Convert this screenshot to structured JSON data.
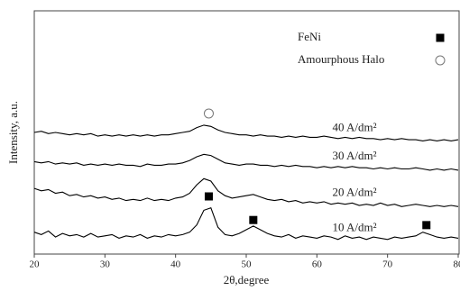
{
  "chart_data": {
    "type": "line",
    "xlabel": "2θ,degree",
    "ylabel": "Intensity, a.u.",
    "xlim": [
      20,
      80
    ],
    "xticks": [
      20,
      30,
      40,
      50,
      60,
      70,
      80
    ],
    "ylim": [
      0,
      100
    ],
    "x": [
      20,
      21,
      22,
      23,
      24,
      25,
      26,
      27,
      28,
      29,
      30,
      31,
      32,
      33,
      34,
      35,
      36,
      37,
      38,
      39,
      40,
      41,
      42,
      43,
      44,
      45,
      46,
      47,
      48,
      49,
      50,
      51,
      52,
      53,
      54,
      55,
      56,
      57,
      58,
      59,
      60,
      61,
      62,
      63,
      64,
      65,
      66,
      67,
      68,
      69,
      70,
      71,
      72,
      73,
      74,
      75,
      76,
      77,
      78,
      79,
      80
    ],
    "series": [
      {
        "name": "40 A/dm²",
        "color": "#000000",
        "values": [
          50,
          50.5,
          49.5,
          50,
          49.5,
          49,
          49.5,
          49,
          49.5,
          48.5,
          49,
          48.5,
          49,
          48.5,
          49,
          48.5,
          49,
          48.5,
          49,
          49,
          49.5,
          50,
          50.5,
          52,
          53,
          52.5,
          51,
          50,
          49.5,
          49,
          49,
          48.5,
          49,
          48.5,
          48.5,
          48,
          48.5,
          48,
          48.5,
          48,
          48,
          48.5,
          48,
          47.5,
          48,
          47.5,
          48,
          47.5,
          47.5,
          47,
          47.5,
          47,
          47.5,
          47,
          47,
          46.5,
          47,
          46.5,
          47,
          46.5,
          47
        ]
      },
      {
        "name": "30 A/dm²",
        "color": "#000000",
        "values": [
          38,
          37.5,
          38,
          37,
          37.5,
          37,
          37.5,
          36.5,
          37,
          36.5,
          37,
          36.5,
          37,
          36.5,
          36.5,
          36,
          37,
          36.5,
          36.5,
          37,
          37,
          37.5,
          38.5,
          40,
          41,
          40.5,
          39,
          37.5,
          37,
          36.5,
          37,
          37,
          36.5,
          36.5,
          36,
          36.5,
          36,
          36.5,
          36,
          36,
          35.5,
          36,
          35.5,
          36,
          35.5,
          36,
          35.5,
          35.5,
          35,
          35.5,
          35,
          35.5,
          35,
          35,
          35.5,
          35,
          34.5,
          35,
          34.5,
          35,
          34.5
        ]
      },
      {
        "name": "20 A/dm²",
        "color": "#000000",
        "values": [
          27,
          26,
          26.5,
          25,
          25.5,
          24,
          24.5,
          23.5,
          24,
          23,
          23.5,
          22.5,
          23,
          22,
          22.5,
          22,
          23,
          22,
          22.5,
          22,
          23,
          23.5,
          25,
          28.5,
          31,
          30,
          26,
          24,
          23,
          23.5,
          24,
          24.5,
          23.5,
          22.5,
          22,
          22.5,
          21.5,
          22,
          21,
          21.5,
          21,
          21.5,
          20.5,
          21,
          20.5,
          21,
          20,
          20.5,
          20,
          21,
          20,
          20.5,
          19.5,
          20,
          20.5,
          20,
          19.5,
          20,
          19.5,
          20,
          19.5
        ]
      },
      {
        "name": "10 A/dm²",
        "color": "#000000",
        "values": [
          9,
          8,
          9.5,
          7,
          8.5,
          7.5,
          8,
          7,
          8.5,
          7,
          7.5,
          8,
          6.5,
          7.5,
          7,
          8,
          6.5,
          7.5,
          7,
          8,
          7.5,
          8,
          9,
          12,
          18,
          19,
          11,
          8,
          7.5,
          8.5,
          10,
          11.5,
          10,
          8.5,
          7.5,
          7,
          8,
          6.5,
          7.5,
          7,
          6.5,
          7.5,
          7,
          6,
          7.5,
          6.5,
          7,
          6,
          7,
          6.5,
          6,
          7,
          6.5,
          7,
          7.5,
          9,
          8,
          7,
          6.5,
          7,
          6.5
        ]
      }
    ],
    "legend": [
      {
        "label": "FeNi",
        "symbol": "square"
      },
      {
        "label": "Amourphous Halo",
        "symbol": "circle"
      }
    ],
    "markers": [
      {
        "symbol": "circle",
        "x": 44.7,
        "y": 57.8
      },
      {
        "symbol": "square",
        "x": 44.7,
        "y": 23.7
      },
      {
        "symbol": "square",
        "x": 51,
        "y": 14
      },
      {
        "symbol": "square",
        "x": 75.5,
        "y": 11.9
      }
    ]
  }
}
